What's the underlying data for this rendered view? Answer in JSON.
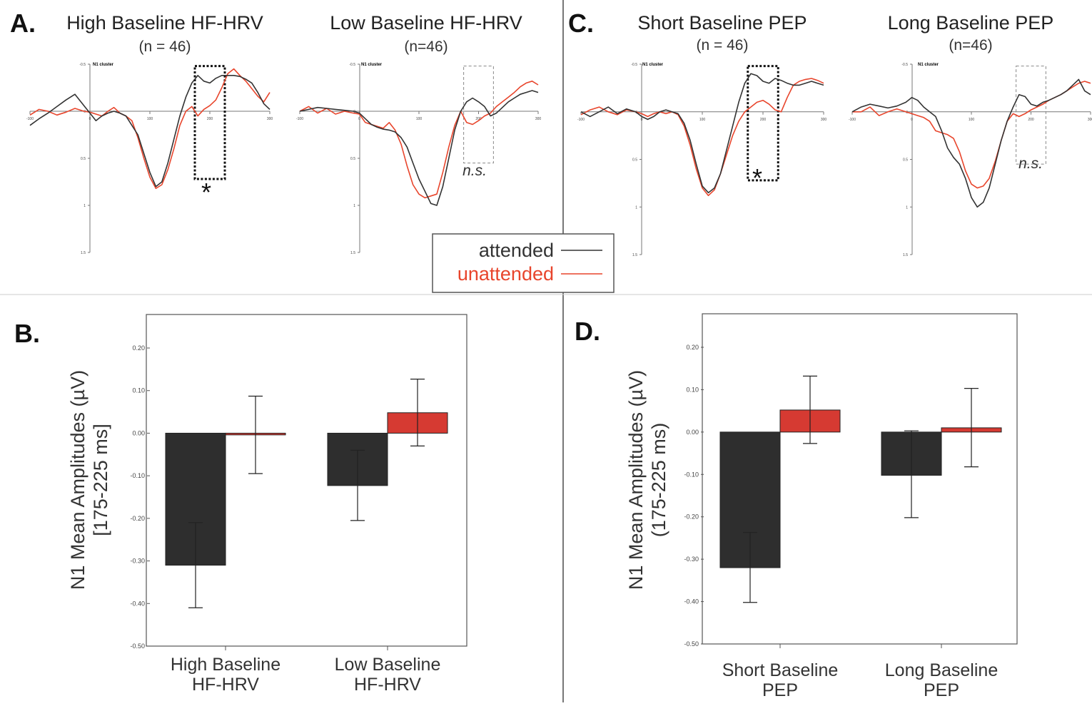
{
  "panels": {
    "A": {
      "letter": "A."
    },
    "B": {
      "letter": "B."
    },
    "C": {
      "letter": "C."
    },
    "D": {
      "letter": "D."
    }
  },
  "legend": {
    "attended": {
      "label": "attended",
      "color": "#333333"
    },
    "unattended": {
      "label": "unattended",
      "color": "#e8452c"
    }
  },
  "colors": {
    "attended": "#333333",
    "unattended": "#e8452c",
    "bar_attended": "#2e2e2e",
    "bar_unattended": "#d63a32"
  },
  "chart_data": [
    {
      "type": "line",
      "panel": "A",
      "title": "High Baseline HF-HRV",
      "subtitle": "(n = 46)",
      "corner_label": "N1 cluster",
      "xlim": [
        -100,
        300
      ],
      "ylim": [
        -0.5,
        1.5
      ],
      "x_ticks": [
        "-100",
        "0",
        "100",
        "200",
        "300"
      ],
      "y_ticks": [
        "-0.5",
        "0",
        "0.5",
        "1",
        "1.5"
      ],
      "window": [
        175,
        225
      ],
      "window_style": "dotted",
      "annotation": "*",
      "x": [
        -100,
        -85,
        -70,
        -55,
        -40,
        -25,
        -10,
        0,
        10,
        20,
        30,
        40,
        50,
        60,
        70,
        80,
        90,
        100,
        110,
        120,
        130,
        140,
        150,
        160,
        170,
        180,
        190,
        200,
        210,
        220,
        230,
        240,
        250,
        260,
        270,
        280,
        290,
        300
      ],
      "series": [
        {
          "name": "attended",
          "values": [
            0.15,
            0.08,
            0.02,
            -0.05,
            -0.12,
            -0.18,
            -0.06,
            0.02,
            0.1,
            0.05,
            0.02,
            0.0,
            0.02,
            0.05,
            0.15,
            0.25,
            0.45,
            0.65,
            0.8,
            0.75,
            0.55,
            0.3,
            0.05,
            -0.15,
            -0.3,
            -0.38,
            -0.32,
            -0.3,
            -0.35,
            -0.38,
            -0.38,
            -0.38,
            -0.37,
            -0.34,
            -0.3,
            -0.2,
            -0.08,
            -0.02
          ]
        },
        {
          "name": "unattended",
          "values": [
            0.04,
            -0.02,
            0.0,
            0.04,
            0.01,
            -0.03,
            0.0,
            0.01,
            0.03,
            0.05,
            0.0,
            -0.04,
            0.02,
            0.05,
            0.1,
            0.28,
            0.5,
            0.7,
            0.82,
            0.78,
            0.62,
            0.4,
            0.15,
            0.0,
            -0.05,
            0.05,
            -0.02,
            -0.06,
            -0.12,
            -0.25,
            -0.4,
            -0.45,
            -0.38,
            -0.32,
            -0.24,
            -0.16,
            -0.1,
            -0.2
          ]
        }
      ]
    },
    {
      "type": "line",
      "panel": "A",
      "title": "Low Baseline HF-HRV",
      "subtitle": "(n=46)",
      "corner_label": "N1 cluster",
      "xlim": [
        -100,
        300
      ],
      "ylim": [
        -0.5,
        1.5
      ],
      "x_ticks": [
        "-100",
        "0",
        "100",
        "200",
        "300"
      ],
      "y_ticks": [
        "-0.5",
        "0",
        "0.5",
        "1",
        "1.5"
      ],
      "window": [
        175,
        225
      ],
      "window_style": "dashed",
      "annotation": "n.s.",
      "x": [
        -100,
        -85,
        -70,
        -55,
        -40,
        -25,
        -10,
        0,
        10,
        20,
        30,
        40,
        50,
        60,
        70,
        80,
        90,
        100,
        110,
        120,
        130,
        140,
        150,
        160,
        170,
        180,
        190,
        200,
        210,
        220,
        230,
        240,
        250,
        260,
        270,
        280,
        290,
        300
      ],
      "series": [
        {
          "name": "attended",
          "values": [
            0.0,
            -0.02,
            -0.04,
            -0.03,
            -0.02,
            -0.01,
            0.0,
            0.02,
            0.08,
            0.14,
            0.17,
            0.19,
            0.2,
            0.22,
            0.28,
            0.38,
            0.55,
            0.72,
            0.85,
            0.98,
            1.0,
            0.8,
            0.5,
            0.2,
            0.0,
            -0.1,
            -0.14,
            -0.1,
            -0.05,
            0.05,
            0.02,
            -0.04,
            -0.1,
            -0.14,
            -0.18,
            -0.2,
            -0.22,
            -0.2
          ]
        },
        {
          "name": "unattended",
          "values": [
            0.0,
            -0.05,
            0.02,
            -0.03,
            0.03,
            0.0,
            0.02,
            0.03,
            0.12,
            0.14,
            0.16,
            0.18,
            0.12,
            0.2,
            0.35,
            0.58,
            0.78,
            0.88,
            0.92,
            0.9,
            0.88,
            0.65,
            0.38,
            0.15,
            0.0,
            0.12,
            0.14,
            0.1,
            0.05,
            0.02,
            -0.05,
            -0.1,
            -0.15,
            -0.2,
            -0.26,
            -0.3,
            -0.32,
            -0.28
          ]
        }
      ]
    },
    {
      "type": "line",
      "panel": "C",
      "title": "Short Baseline PEP",
      "subtitle": "(n = 46)",
      "corner_label": "N1 cluster",
      "xlim": [
        -100,
        300
      ],
      "ylim": [
        -0.5,
        1.5
      ],
      "x_ticks": [
        "-100",
        "0",
        "100",
        "200",
        "300"
      ],
      "y_ticks": [
        "-0.5",
        "0",
        "0.5",
        "1",
        "1.5"
      ],
      "window": [
        175,
        225
      ],
      "window_style": "dotted",
      "annotation": "*",
      "x": [
        -100,
        -85,
        -70,
        -55,
        -40,
        -25,
        -10,
        0,
        10,
        20,
        30,
        40,
        50,
        60,
        70,
        80,
        90,
        100,
        110,
        120,
        130,
        140,
        150,
        160,
        170,
        180,
        190,
        200,
        210,
        220,
        230,
        240,
        250,
        260,
        270,
        280,
        290,
        300
      ],
      "series": [
        {
          "name": "attended",
          "values": [
            0.0,
            0.05,
            0.0,
            -0.05,
            0.02,
            -0.03,
            0.0,
            0.05,
            0.08,
            0.05,
            0.0,
            -0.02,
            0.0,
            0.02,
            0.12,
            0.3,
            0.55,
            0.78,
            0.85,
            0.8,
            0.65,
            0.4,
            0.15,
            -0.1,
            -0.3,
            -0.4,
            -0.38,
            -0.32,
            -0.3,
            -0.35,
            -0.33,
            -0.3,
            -0.28,
            -0.28,
            -0.3,
            -0.32,
            -0.3,
            -0.28
          ]
        },
        {
          "name": "unattended",
          "values": [
            0.03,
            -0.02,
            -0.05,
            0.0,
            0.03,
            -0.02,
            0.0,
            0.02,
            0.05,
            0.02,
            0.0,
            0.02,
            0.0,
            0.03,
            0.15,
            0.35,
            0.6,
            0.8,
            0.88,
            0.82,
            0.65,
            0.45,
            0.25,
            0.1,
            0.0,
            -0.05,
            -0.1,
            -0.12,
            -0.08,
            -0.02,
            0.0,
            -0.15,
            -0.28,
            -0.32,
            -0.34,
            -0.35,
            -0.33,
            -0.3
          ]
        }
      ]
    },
    {
      "type": "line",
      "panel": "C",
      "title": "Long Baseline PEP",
      "subtitle": "(n=46)",
      "corner_label": "N1 cluster",
      "xlim": [
        -100,
        300
      ],
      "ylim": [
        -0.5,
        1.5
      ],
      "x_ticks": [
        "-100",
        "0",
        "100",
        "200",
        "300"
      ],
      "y_ticks": [
        "-0.5",
        "0",
        "0.5",
        "1",
        "1.5"
      ],
      "window": [
        175,
        225
      ],
      "window_style": "dashed",
      "annotation": "n.s.",
      "x": [
        -100,
        -85,
        -70,
        -55,
        -40,
        -25,
        -10,
        0,
        10,
        20,
        30,
        40,
        50,
        60,
        70,
        80,
        90,
        100,
        110,
        120,
        130,
        140,
        150,
        160,
        170,
        180,
        190,
        200,
        210,
        220,
        230,
        240,
        250,
        260,
        270,
        280,
        290,
        300
      ],
      "series": [
        {
          "name": "attended",
          "values": [
            0.0,
            -0.05,
            -0.08,
            -0.06,
            -0.04,
            -0.06,
            -0.1,
            -0.15,
            -0.12,
            -0.05,
            0.0,
            0.05,
            0.2,
            0.38,
            0.48,
            0.55,
            0.7,
            0.9,
            1.0,
            0.95,
            0.8,
            0.55,
            0.3,
            0.1,
            -0.05,
            -0.18,
            -0.16,
            -0.08,
            -0.06,
            -0.1,
            -0.12,
            -0.15,
            -0.18,
            -0.22,
            -0.28,
            -0.34,
            -0.22,
            -0.18
          ]
        },
        {
          "name": "unattended",
          "values": [
            0.0,
            0.0,
            -0.05,
            0.04,
            0.0,
            -0.03,
            0.0,
            0.02,
            0.04,
            0.06,
            0.1,
            0.2,
            0.22,
            0.24,
            0.28,
            0.42,
            0.62,
            0.76,
            0.8,
            0.78,
            0.7,
            0.52,
            0.3,
            0.1,
            0.02,
            0.05,
            0.02,
            -0.02,
            -0.05,
            -0.08,
            -0.12,
            -0.15,
            -0.18,
            -0.22,
            -0.26,
            -0.3,
            -0.32,
            -0.3
          ]
        }
      ]
    },
    {
      "type": "bar",
      "panel": "B",
      "ylabel": [
        "N1 Mean Amplitudes (µV)",
        "[175-225 ms]"
      ],
      "ylim": [
        -0.5,
        0.25
      ],
      "y_ticks": [
        0.2,
        0.1,
        0.0,
        -0.1,
        -0.2,
        -0.3,
        -0.4,
        -0.5
      ],
      "y_tick_labels": [
        "0.20",
        "0.10",
        "0.00",
        "-0.10",
        "-0.20",
        "-0.30",
        "-0.40",
        "-0.50"
      ],
      "categories": [
        [
          "High Baseline",
          "HF-HRV"
        ],
        [
          "Low Baseline",
          "HF-HRV"
        ]
      ],
      "series": [
        {
          "name": "attended",
          "values": [
            -0.31,
            -0.123
          ],
          "err_low": [
            -0.41,
            -0.205
          ],
          "err_high": [
            -0.21,
            -0.04
          ]
        },
        {
          "name": "unattended",
          "values": [
            -0.004,
            0.048
          ],
          "err_low": [
            -0.095,
            -0.03
          ],
          "err_high": [
            0.087,
            0.127
          ]
        }
      ]
    },
    {
      "type": "bar",
      "panel": "D",
      "ylabel": [
        "N1 Mean Amplitudes (µV)",
        "(175-225 ms)"
      ],
      "ylim": [
        -0.5,
        0.27
      ],
      "y_ticks": [
        0.2,
        0.1,
        0.0,
        -0.1,
        -0.2,
        -0.3,
        -0.4,
        -0.5
      ],
      "y_tick_labels": [
        "0.20",
        "0.10",
        "0.00",
        "-0.10",
        "-0.20",
        "-0.30",
        "-0.40",
        "-0.50"
      ],
      "categories": [
        [
          "Short Baseline",
          "PEP"
        ],
        [
          "Long Baseline",
          "PEP"
        ]
      ],
      "series": [
        {
          "name": "attended",
          "values": [
            -0.32,
            -0.102
          ],
          "err_low": [
            -0.402,
            -0.202
          ],
          "err_high": [
            -0.237,
            0.003
          ]
        },
        {
          "name": "unattended",
          "values": [
            0.052,
            0.01
          ],
          "err_low": [
            -0.027,
            -0.082
          ],
          "err_high": [
            0.132,
            0.103
          ]
        }
      ]
    }
  ]
}
